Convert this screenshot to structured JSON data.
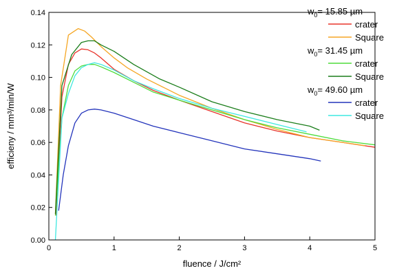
{
  "chart_data": {
    "type": "line",
    "xlabel": "fluence / J/cm²",
    "ylabel": "efficieny / mm³/min/W",
    "xlim": [
      0,
      5
    ],
    "ylim": [
      0,
      0.14
    ],
    "xticks": [
      0,
      1,
      2,
      3,
      4,
      5
    ],
    "yticks": [
      0.0,
      0.02,
      0.04,
      0.06,
      0.08,
      0.1,
      0.12,
      0.14
    ],
    "ytick_labels": [
      "0.00",
      "0.02",
      "0.04",
      "0.06",
      "0.08",
      "0.10",
      "0.12",
      "0.14"
    ],
    "grid": false,
    "legend_position": "top-right",
    "groups": [
      {
        "heading_main": "w",
        "heading_sub": "0",
        "heading_rest": "= 15.85 µm",
        "series": [
          {
            "name": "crater",
            "color": "#e8332a",
            "points": [
              [
                0.11,
                0.015
              ],
              [
                0.2,
                0.088
              ],
              [
                0.3,
                0.108
              ],
              [
                0.4,
                0.115
              ],
              [
                0.5,
                0.1175
              ],
              [
                0.6,
                0.117
              ],
              [
                0.7,
                0.115
              ],
              [
                0.8,
                0.112
              ],
              [
                1.0,
                0.105
              ],
              [
                1.3,
                0.098
              ],
              [
                1.6,
                0.092
              ],
              [
                2.0,
                0.086
              ],
              [
                2.5,
                0.079
              ],
              [
                3.0,
                0.072
              ],
              [
                3.5,
                0.067
              ],
              [
                4.0,
                0.063
              ],
              [
                4.5,
                0.06
              ],
              [
                5.0,
                0.057
              ]
            ]
          },
          {
            "name": "Square",
            "color": "#f5a623",
            "points": [
              [
                0.1,
                0.016
              ],
              [
                0.18,
                0.095
              ],
              [
                0.3,
                0.126
              ],
              [
                0.45,
                0.13
              ],
              [
                0.55,
                0.1285
              ],
              [
                0.65,
                0.125
              ],
              [
                0.8,
                0.119
              ],
              [
                1.0,
                0.112
              ],
              [
                1.2,
                0.106
              ],
              [
                1.5,
                0.099
              ],
              [
                1.8,
                0.093
              ],
              [
                2.0,
                0.089
              ],
              [
                2.5,
                0.081
              ],
              [
                3.0,
                0.074
              ],
              [
                3.5,
                0.068
              ],
              [
                4.0,
                0.063
              ],
              [
                4.5,
                0.06
              ],
              [
                4.85,
                0.058
              ]
            ]
          }
        ]
      },
      {
        "heading_main": "w",
        "heading_sub": "0",
        "heading_rest": "= 31.45 µm",
        "series": [
          {
            "name": "crater",
            "color": "#4ddc3a",
            "points": [
              [
                0.1,
                0.015
              ],
              [
                0.2,
                0.075
              ],
              [
                0.3,
                0.095
              ],
              [
                0.4,
                0.104
              ],
              [
                0.5,
                0.107
              ],
              [
                0.6,
                0.108
              ],
              [
                0.7,
                0.108
              ],
              [
                0.8,
                0.1065
              ],
              [
                1.0,
                0.103
              ],
              [
                1.3,
                0.097
              ],
              [
                1.6,
                0.091
              ],
              [
                2.0,
                0.086
              ],
              [
                2.5,
                0.08
              ],
              [
                3.0,
                0.074
              ],
              [
                3.5,
                0.069
              ],
              [
                4.0,
                0.065
              ],
              [
                4.5,
                0.061
              ],
              [
                5.0,
                0.0585
              ]
            ]
          },
          {
            "name": "Square",
            "color": "#1a7d1a",
            "points": [
              [
                0.1,
                0.016
              ],
              [
                0.2,
                0.095
              ],
              [
                0.35,
                0.114
              ],
              [
                0.5,
                0.1215
              ],
              [
                0.6,
                0.1225
              ],
              [
                0.7,
                0.1225
              ],
              [
                0.8,
                0.12
              ],
              [
                1.0,
                0.116
              ],
              [
                1.3,
                0.108
              ],
              [
                1.7,
                0.099
              ],
              [
                2.0,
                0.094
              ],
              [
                2.5,
                0.085
              ],
              [
                3.0,
                0.079
              ],
              [
                3.5,
                0.074
              ],
              [
                4.0,
                0.07
              ],
              [
                4.15,
                0.0675
              ]
            ]
          }
        ]
      },
      {
        "heading_main": "w",
        "heading_sub": "0",
        "heading_rest": "= 49.60 µm",
        "series": [
          {
            "name": "crater",
            "color": "#2233bb",
            "points": [
              [
                0.15,
                0.018
              ],
              [
                0.22,
                0.04
              ],
              [
                0.3,
                0.058
              ],
              [
                0.4,
                0.072
              ],
              [
                0.5,
                0.078
              ],
              [
                0.6,
                0.08
              ],
              [
                0.7,
                0.0805
              ],
              [
                0.8,
                0.08
              ],
              [
                1.0,
                0.078
              ],
              [
                1.3,
                0.074
              ],
              [
                1.6,
                0.07
              ],
              [
                2.0,
                0.066
              ],
              [
                2.5,
                0.061
              ],
              [
                3.0,
                0.056
              ],
              [
                3.5,
                0.053
              ],
              [
                4.0,
                0.05
              ],
              [
                4.17,
                0.0485
              ]
            ]
          },
          {
            "name": "Square",
            "color": "#3ee8e0",
            "points": [
              [
                0.1,
                0.0
              ],
              [
                0.2,
                0.075
              ],
              [
                0.3,
                0.09
              ],
              [
                0.4,
                0.101
              ],
              [
                0.5,
                0.106
              ],
              [
                0.6,
                0.108
              ],
              [
                0.7,
                0.109
              ],
              [
                0.8,
                0.108
              ],
              [
                1.0,
                0.1045
              ],
              [
                1.3,
                0.098
              ],
              [
                1.6,
                0.093
              ],
              [
                2.0,
                0.087
              ],
              [
                2.5,
                0.081
              ],
              [
                3.0,
                0.076
              ],
              [
                3.5,
                0.071
              ],
              [
                3.95,
                0.0665
              ]
            ]
          }
        ]
      }
    ]
  }
}
